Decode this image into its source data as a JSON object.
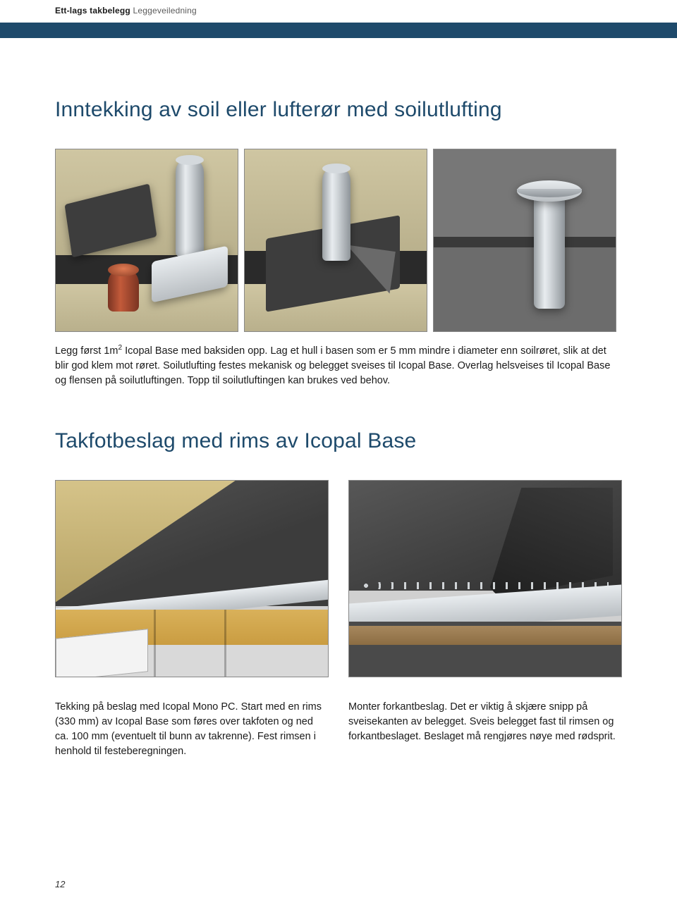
{
  "header": {
    "bold": "Ett-lags takbelegg",
    "light": "Leggeveiledning"
  },
  "colors": {
    "accent": "#1e4a6b",
    "text": "#1a1a1a"
  },
  "section1": {
    "title": "Inntekking av soil eller lufterør med soilutlufting",
    "caption": "Legg først 1m² Icopal Base med baksiden opp. Lag et hull i basen som er 5 mm mindre i diameter enn soilrøret, slik at det blir god klem mot røret. Soilutlufting festes mekanisk og belegget sveises til Icopal Base. Overlag helsveises til Icopal Base og flensen på soilutluftingen. Topp til soilutluftingen kan brukes ved behov."
  },
  "section2": {
    "title": "Takfotbeslag med rims av Icopal Base",
    "caption_left": "Tekking på beslag med Icopal Mono PC. Start med en rims (330 mm) av Icopal Base som føres over takfoten og ned ca. 100 mm (eventuelt til bunn av takrenne). Fest rimsen i henhold til festeberegningen.",
    "caption_right": "Monter forkantbeslag. Det er viktig å skjære snipp på sveisekanten av belegget. Sveis belegget fast til rimsen og forkantbeslaget. Beslaget må rengjøres nøye med rødsprit."
  },
  "page_number": "12"
}
